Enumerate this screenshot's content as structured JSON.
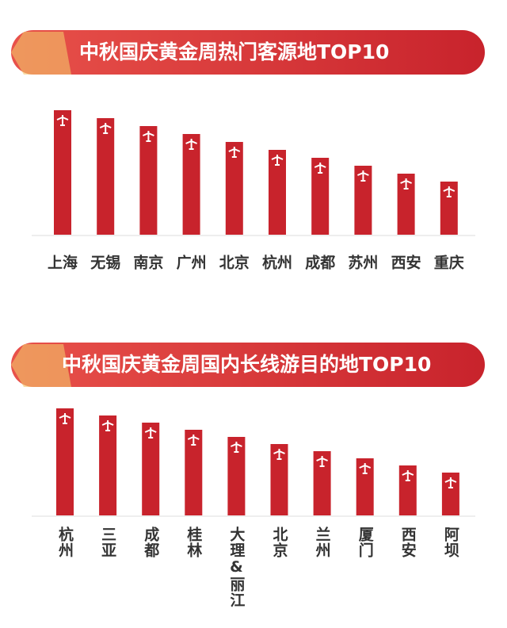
{
  "chart_data": [
    {
      "type": "bar",
      "title": "中秋国庆黄金周热门客源地TOP10",
      "categories": [
        "上海",
        "无锡",
        "南京",
        "广州",
        "北京",
        "杭州",
        "成都",
        "苏州",
        "西安",
        "重庆"
      ],
      "values": [
        157,
        147,
        137,
        127,
        117,
        107,
        97,
        87,
        77,
        67
      ],
      "color": "#c8232c"
    },
    {
      "type": "bar",
      "title": "中秋国庆黄金周国内长线游目的地TOP10",
      "categories": [
        "杭州",
        "三亚",
        "成都",
        "桂林",
        "大理&丽江",
        "北京",
        "兰州",
        "厦门",
        "西安",
        "阿坝"
      ],
      "values": [
        135,
        126,
        117,
        108,
        99,
        90,
        81,
        72,
        63,
        54
      ],
      "color": "#c8232c"
    }
  ]
}
